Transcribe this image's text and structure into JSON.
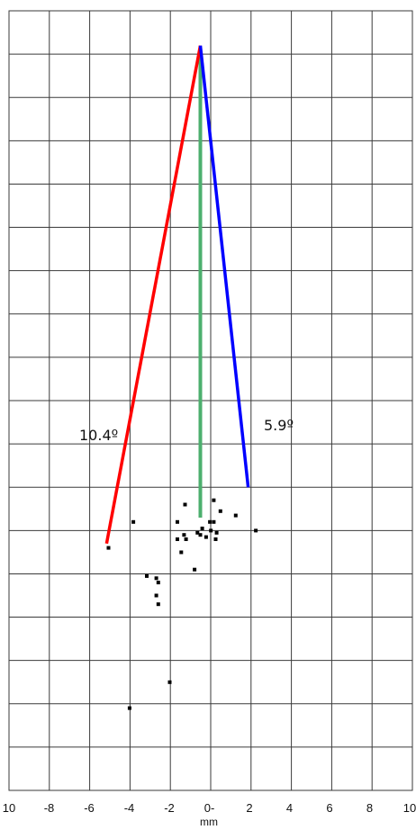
{
  "chart_data": {
    "type": "scatter",
    "xlabel": "mm",
    "x_ticks": [
      "10",
      "-8",
      "-6",
      "-4",
      "-2",
      "0-",
      "2",
      "4",
      "6",
      "8",
      "10"
    ],
    "xlim": [
      -10,
      10
    ],
    "ylim": [
      -1,
      17
    ],
    "grid": true,
    "points": [
      {
        "x": -4.8,
        "y": 4.6
      },
      {
        "x": -3.5,
        "y": 5.2
      },
      {
        "x": -3.7,
        "y": 0.9
      },
      {
        "x": -2.8,
        "y": 3.95
      },
      {
        "x": -2.3,
        "y": 3.9
      },
      {
        "x": -2.2,
        "y": 3.8
      },
      {
        "x": -2.3,
        "y": 3.5
      },
      {
        "x": -2.2,
        "y": 3.3
      },
      {
        "x": -1.6,
        "y": 1.5
      },
      {
        "x": -1.2,
        "y": 5.2
      },
      {
        "x": -1.2,
        "y": 4.8
      },
      {
        "x": -1.0,
        "y": 4.5
      },
      {
        "x": -0.85,
        "y": 4.9
      },
      {
        "x": -0.75,
        "y": 4.8
      },
      {
        "x": -0.8,
        "y": 5.6
      },
      {
        "x": -0.3,
        "y": 4.1
      },
      {
        "x": -0.15,
        "y": 4.95
      },
      {
        "x": 0.0,
        "y": 4.9
      },
      {
        "x": 0.1,
        "y": 5.05
      },
      {
        "x": 0.3,
        "y": 4.85
      },
      {
        "x": 0.5,
        "y": 5.2
      },
      {
        "x": 0.55,
        "y": 5.0
      },
      {
        "x": 0.7,
        "y": 5.2
      },
      {
        "x": 0.7,
        "y": 5.7
      },
      {
        "x": 0.8,
        "y": 4.8
      },
      {
        "x": 0.85,
        "y": 4.95
      },
      {
        "x": 1.05,
        "y": 5.45
      },
      {
        "x": 1.85,
        "y": 5.35
      },
      {
        "x": 2.9,
        "y": 5.0
      }
    ],
    "annotations": [
      {
        "text": "10.4º",
        "color": "#ff0000",
        "from": {
          "x": 0.0,
          "y": 16.2
        },
        "to": {
          "x": -4.9,
          "y": 4.7
        }
      },
      {
        "text": "5.9º",
        "color": "#0000ff",
        "from": {
          "x": 0.0,
          "y": 16.2
        },
        "to": {
          "x": 2.5,
          "y": 6.0
        }
      },
      {
        "text": "",
        "color": "#4caf6e",
        "from": {
          "x": 0.0,
          "y": 16.1
        },
        "to": {
          "x": 0.0,
          "y": 5.3
        }
      }
    ],
    "colors": {
      "grid": "#3a3a3a",
      "points": "#000000",
      "background": "#ffffff"
    }
  }
}
